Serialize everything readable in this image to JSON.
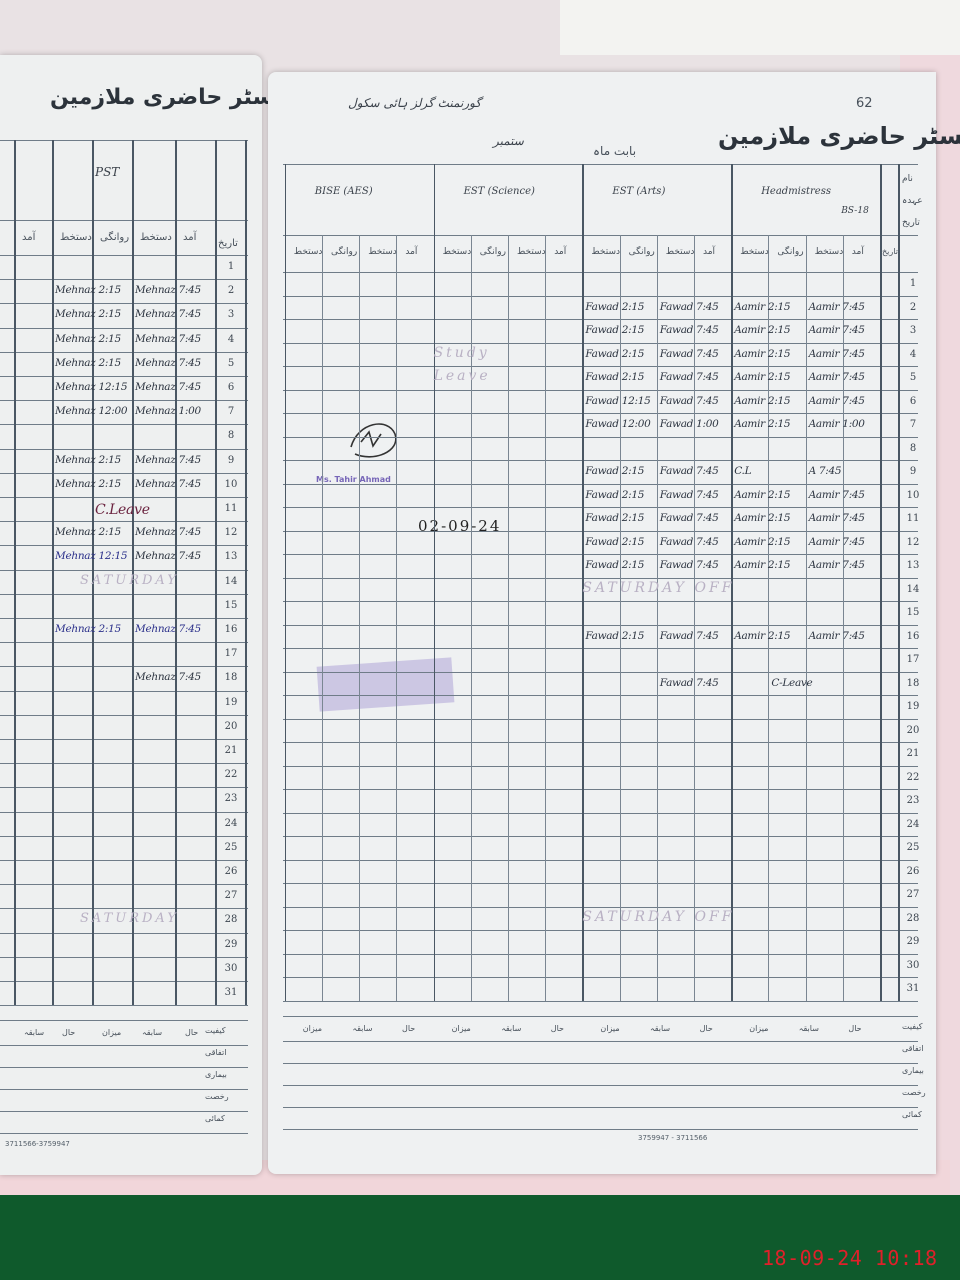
{
  "photo": {
    "timestamp": "18-09-24  10:18"
  },
  "left_page": {
    "title": "رجسٹر حاضری ملازمین",
    "group_header": "PST",
    "subheaders": [
      "آمد",
      "دستخط",
      "روانگی",
      "دستخط",
      "آمد",
      "دستخط"
    ],
    "date_label": "تاریخ",
    "rows": 31,
    "entries": [
      {
        "row": 2,
        "col": 0,
        "text": "Mehnaz 7:45"
      },
      {
        "row": 2,
        "col": 2,
        "text": "Mehnaz 2:15"
      },
      {
        "row": 3,
        "col": 0,
        "text": "Mehnaz 7:45"
      },
      {
        "row": 3,
        "col": 2,
        "text": "Mehnaz 2:15"
      },
      {
        "row": 4,
        "col": 0,
        "text": "Mehnaz 7:45"
      },
      {
        "row": 4,
        "col": 2,
        "text": "Mehnaz 2:15"
      },
      {
        "row": 5,
        "col": 0,
        "text": "Mehnaz 7:45"
      },
      {
        "row": 5,
        "col": 2,
        "text": "Mehnaz 2:15"
      },
      {
        "row": 6,
        "col": 0,
        "text": "Mehnaz 7:45"
      },
      {
        "row": 6,
        "col": 2,
        "text": "Mehnaz 12:15"
      },
      {
        "row": 7,
        "col": 0,
        "text": "Mehnaz 1:00"
      },
      {
        "row": 7,
        "col": 2,
        "text": "Mehnaz 12:00"
      },
      {
        "row": 9,
        "col": 0,
        "text": "Mehnaz 7:45"
      },
      {
        "row": 9,
        "col": 2,
        "text": "Mehnaz 2:15"
      },
      {
        "row": 10,
        "col": 0,
        "text": "Mehnaz 7:45"
      },
      {
        "row": 10,
        "col": 2,
        "text": "Mehnaz 2:15"
      },
      {
        "row": 11,
        "col": 1,
        "text": "C.Leave",
        "style": "red"
      },
      {
        "row": 12,
        "col": 0,
        "text": "Mehnaz 7:45"
      },
      {
        "row": 12,
        "col": 2,
        "text": "Mehnaz 2:15"
      },
      {
        "row": 13,
        "col": 0,
        "text": "Mehnaz 7:45"
      },
      {
        "row": 13,
        "col": 2,
        "text": "Mehnaz 12:15",
        "style": "blue"
      },
      {
        "row": 16,
        "col": 0,
        "text": "Mehnaz 7:45",
        "style": "blue"
      },
      {
        "row": 16,
        "col": 2,
        "text": "Mehnaz 2:15",
        "style": "blue"
      },
      {
        "row": 18,
        "col": 0,
        "text": "Mehnaz 7:45"
      }
    ],
    "faint_notes": [
      {
        "row": 14,
        "text": "SATURDAY"
      },
      {
        "row": 28,
        "text": "SATURDAY"
      }
    ],
    "summary_headers": [
      "حال",
      "سابقہ",
      "میزان",
      "حال",
      "سابقہ",
      "میزان"
    ],
    "summary_labels": [
      "کیفیت",
      "اتفاقی",
      "بیماری",
      "رخصت",
      "کمائی"
    ],
    "footer": "3711566-3759947"
  },
  "right_page": {
    "page_number": "62",
    "title": "رجسٹر حاضری ملازمین",
    "header_line": "گورنمنٹ گرلز ہائی سکول",
    "month_label": "بابت ماہ",
    "month_value": "ستمبر",
    "groups": [
      {
        "label": "Headmistress",
        "sub": "BS-18"
      },
      {
        "label": "EST (Arts)",
        "sub": ""
      },
      {
        "label": "EST (Science)",
        "sub": ""
      },
      {
        "label": "BISE (AES)",
        "sub": ""
      }
    ],
    "side_labels": [
      "نام",
      "عہدہ",
      "تاریخ"
    ],
    "subheaders": [
      "آمد",
      "دستخط",
      "روانگی",
      "دستخط"
    ],
    "date_label": "تاریخ",
    "rows": 31,
    "entries": [
      {
        "row": 2,
        "col": 0,
        "text": "Aamir 7:45"
      },
      {
        "row": 2,
        "col": 2,
        "text": "Aamir 2:15"
      },
      {
        "row": 2,
        "col": 4,
        "text": "Fawad 7:45"
      },
      {
        "row": 2,
        "col": 6,
        "text": "Fawad 2:15"
      },
      {
        "row": 3,
        "col": 0,
        "text": "Aamir 7:45"
      },
      {
        "row": 3,
        "col": 2,
        "text": "Aamir 2:15"
      },
      {
        "row": 3,
        "col": 4,
        "text": "Fawad 7:45"
      },
      {
        "row": 3,
        "col": 6,
        "text": "Fawad 2:15"
      },
      {
        "row": 4,
        "col": 0,
        "text": "Aamir 7:45"
      },
      {
        "row": 4,
        "col": 2,
        "text": "Aamir 2:15"
      },
      {
        "row": 4,
        "col": 4,
        "text": "Fawad 7:45"
      },
      {
        "row": 4,
        "col": 6,
        "text": "Fawad 2:15"
      },
      {
        "row": 5,
        "col": 0,
        "text": "Aamir 7:45"
      },
      {
        "row": 5,
        "col": 2,
        "text": "Aamir 2:15"
      },
      {
        "row": 5,
        "col": 4,
        "text": "Fawad 7:45"
      },
      {
        "row": 5,
        "col": 6,
        "text": "Fawad 2:15"
      },
      {
        "row": 6,
        "col": 0,
        "text": "Aamir 7:45"
      },
      {
        "row": 6,
        "col": 2,
        "text": "Aamir 2:15"
      },
      {
        "row": 6,
        "col": 4,
        "text": "Fawad 7:45"
      },
      {
        "row": 6,
        "col": 6,
        "text": "Fawad 12:15"
      },
      {
        "row": 7,
        "col": 0,
        "text": "Aamir 1:00"
      },
      {
        "row": 7,
        "col": 2,
        "text": "Aamir 2:15"
      },
      {
        "row": 7,
        "col": 4,
        "text": "Fawad 1:00"
      },
      {
        "row": 7,
        "col": 6,
        "text": "Fawad 12:00"
      },
      {
        "row": 9,
        "col": 0,
        "text": "A 7:45"
      },
      {
        "row": 9,
        "col": 2,
        "text": "C.L"
      },
      {
        "row": 9,
        "col": 4,
        "text": "Fawad 7:45"
      },
      {
        "row": 9,
        "col": 6,
        "text": "Fawad 2:15"
      },
      {
        "row": 10,
        "col": 0,
        "text": "Aamir 7:45"
      },
      {
        "row": 10,
        "col": 2,
        "text": "Aamir 2:15"
      },
      {
        "row": 10,
        "col": 4,
        "text": "Fawad 7:45"
      },
      {
        "row": 10,
        "col": 6,
        "text": "Fawad 2:15"
      },
      {
        "row": 11,
        "col": 0,
        "text": "Aamir 7:45"
      },
      {
        "row": 11,
        "col": 2,
        "text": "Aamir 2:15"
      },
      {
        "row": 11,
        "col": 4,
        "text": "Fawad 7:45"
      },
      {
        "row": 11,
        "col": 6,
        "text": "Fawad 2:15"
      },
      {
        "row": 12,
        "col": 0,
        "text": "Aamir 7:45"
      },
      {
        "row": 12,
        "col": 2,
        "text": "Aamir 2:15"
      },
      {
        "row": 12,
        "col": 4,
        "text": "Fawad 7:45"
      },
      {
        "row": 12,
        "col": 6,
        "text": "Fawad 2:15"
      },
      {
        "row": 13,
        "col": 0,
        "text": "Aamir 7:45"
      },
      {
        "row": 13,
        "col": 2,
        "text": "Aamir 2:15"
      },
      {
        "row": 13,
        "col": 4,
        "text": "Fawad 7:45"
      },
      {
        "row": 13,
        "col": 6,
        "text": "Fawad 2:15"
      },
      {
        "row": 16,
        "col": 0,
        "text": "Aamir 7:45"
      },
      {
        "row": 16,
        "col": 2,
        "text": "Aamir 2:15"
      },
      {
        "row": 16,
        "col": 4,
        "text": "Fawad 7:45"
      },
      {
        "row": 16,
        "col": 6,
        "text": "Fawad 2:15"
      },
      {
        "row": 18,
        "col": 1,
        "text": "C-Leave"
      },
      {
        "row": 18,
        "col": 4,
        "text": "Fawad 7:45"
      }
    ],
    "faint_notes": [
      {
        "row": 4,
        "col": 10,
        "text": "Study"
      },
      {
        "row": 5,
        "col": 10,
        "text": "Leave"
      },
      {
        "row": 14,
        "col": 6,
        "text": "SATURDAY OFF"
      },
      {
        "row": 28,
        "col": 6,
        "text": "SATURDAY OFF"
      }
    ],
    "signature_date": "02-09-24",
    "stamp_text": "Ms. Tahir Ahmad",
    "summary_headers": [
      "حال",
      "سابقہ",
      "میزان",
      "حال",
      "سابقہ",
      "میزان",
      "حال",
      "سابقہ",
      "میزان",
      "حال",
      "سابقہ",
      "میزان"
    ],
    "summary_labels": [
      "کیفیت",
      "اتفاقی",
      "بیماری",
      "رخصت",
      "کمائی"
    ],
    "footer": "3759947 - 3711566"
  }
}
